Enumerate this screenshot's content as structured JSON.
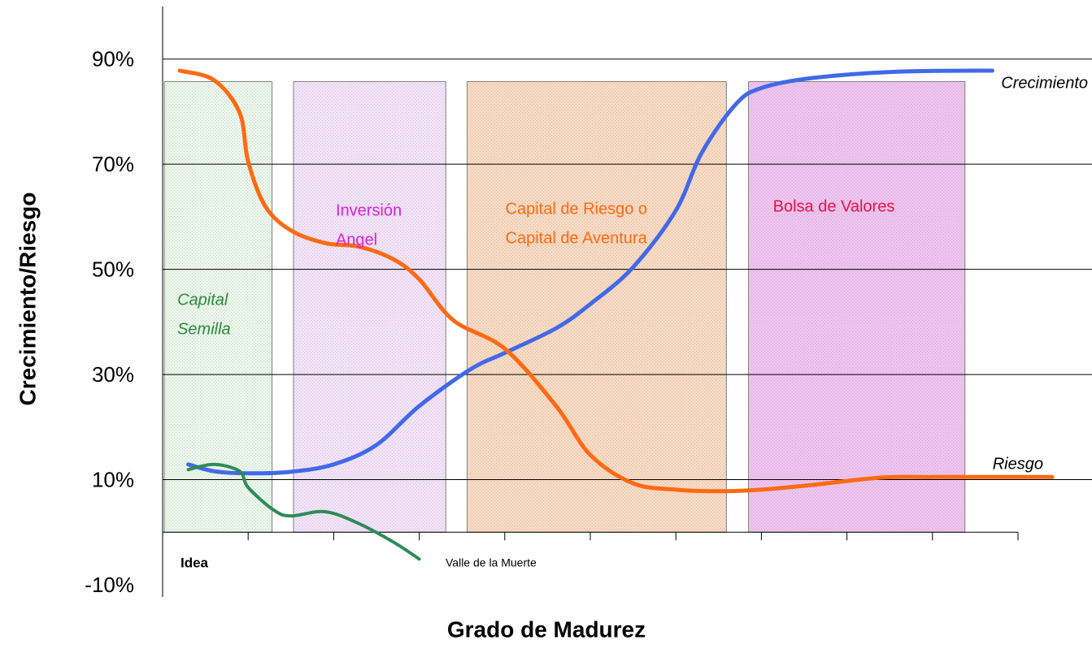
{
  "chart_data": {
    "type": "line",
    "x_label": "Grado de Madurez",
    "y_label": "Crecimiento/Riesgo",
    "xlim": [
      0,
      10
    ],
    "xticks": [
      0,
      1,
      2,
      3,
      4,
      5,
      6,
      7,
      8,
      9,
      10
    ],
    "ylim": [
      -10,
      100
    ],
    "yticks": [
      {
        "value": -10,
        "label": "-10%"
      },
      {
        "value": 10,
        "label": "10%"
      },
      {
        "value": 30,
        "label": "30%"
      },
      {
        "value": 50,
        "label": "50%"
      },
      {
        "value": 70,
        "label": "70%"
      },
      {
        "value": 90,
        "label": "90%"
      }
    ],
    "grid": true,
    "bands": [
      {
        "xrange": [
          0.02,
          1.28
        ],
        "top": 85.7,
        "color": "#eaf6ea",
        "text_color": "#2e8b3e",
        "italic": true,
        "label_lines": [
          "Capital",
          "Semilla"
        ]
      },
      {
        "xrange": [
          1.53,
          3.31
        ],
        "top": 85.7,
        "color": "#f1e2f8",
        "text_color": "#e020e0",
        "italic": false,
        "label_lines": [
          "Inversión",
          "Angel"
        ]
      },
      {
        "xrange": [
          3.56,
          6.59
        ],
        "top": 85.7,
        "color": "#f8d9c2",
        "text_color": "#ff6a13",
        "italic": false,
        "label_lines": [
          "Capital de Riesgo  o",
          "Capital de Aventura"
        ]
      },
      {
        "xrange": [
          6.85,
          9.38
        ],
        "top": 85.7,
        "color": "#eec4ee",
        "text_color": "#f0104a",
        "italic": false,
        "label_lines": [
          "Bolsa de Valores"
        ]
      }
    ],
    "annotation": "Idea",
    "series": [
      {
        "name": "Crecimiento",
        "color": "#4169e8",
        "x": [
          0.3,
          0.6,
          1.0,
          1.5,
          2.0,
          2.5,
          3.0,
          3.6,
          4.0,
          4.6,
          5.0,
          5.5,
          6.0,
          6.3,
          6.7,
          7.0,
          7.6,
          8.6,
          9.7
        ],
        "values": [
          12.9,
          11.6,
          11.2,
          11.5,
          12.9,
          16.6,
          24,
          31,
          34.1,
          38.8,
          43.4,
          50.4,
          61.2,
          72.1,
          81.4,
          84.5,
          86.4,
          87.6,
          87.8
        ]
      },
      {
        "name": "Riesgo",
        "color": "#ff6a13",
        "x": [
          0.2,
          0.6,
          0.9,
          1.0,
          1.2,
          1.5,
          1.9,
          2.3,
          2.7,
          3.0,
          3.4,
          4.0,
          4.6,
          5.0,
          5.5,
          6.0,
          6.5,
          7.0,
          7.6,
          8.4,
          9.0,
          10.4
        ],
        "values": [
          87.8,
          86.0,
          79.8,
          70.5,
          62.0,
          57.4,
          55.0,
          54.3,
          51.9,
          48.1,
          40.3,
          34.9,
          24.0,
          14.7,
          9.3,
          8.1,
          7.8,
          8.1,
          9.0,
          10.4,
          10.5,
          10.5
        ]
      },
      {
        "name": "Valle de la Muerte",
        "color": "#2e8b57",
        "x": [
          0.3,
          0.6,
          0.9,
          1.0,
          1.3,
          1.5,
          1.9,
          2.3,
          2.7,
          3.0
        ],
        "values": [
          11.9,
          12.9,
          11.6,
          8.5,
          4.2,
          3.1,
          3.9,
          1.6,
          -1.9,
          -5.1
        ]
      }
    ]
  }
}
